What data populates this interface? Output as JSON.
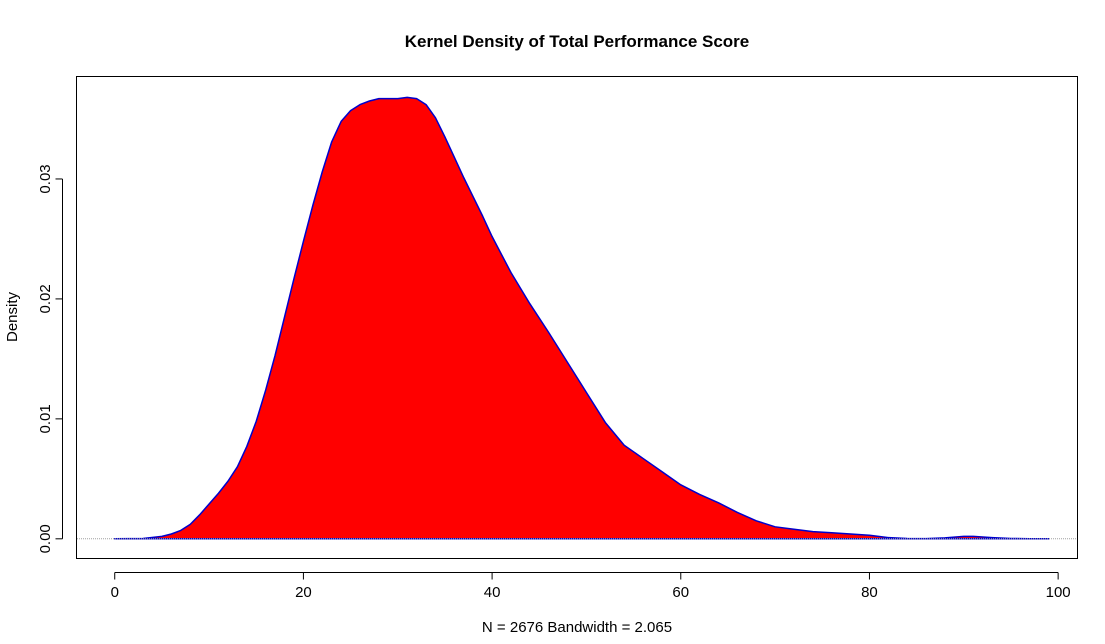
{
  "chart_data": {
    "type": "area",
    "title": "Kernel Density of Total Performance Score",
    "xlabel": "N = 2676   Bandwidth = 2.065",
    "ylabel": "Density",
    "xlim": [
      -4,
      102
    ],
    "ylim": [
      -0.0016,
      0.0385
    ],
    "x_ticks": [
      0,
      20,
      40,
      60,
      80,
      100
    ],
    "x_tick_labels": [
      "0",
      "20",
      "40",
      "60",
      "80",
      "100"
    ],
    "y_ticks": [
      0.0,
      0.01,
      0.02,
      0.03
    ],
    "y_tick_labels": [
      "0.00",
      "0.01",
      "0.02",
      "0.03"
    ],
    "fill_color": "#ff0000",
    "line_color": "#0000cc",
    "baseline_color": "#a0a0a0",
    "grid": false,
    "series": [
      {
        "x": [
          0,
          3,
          5,
          6,
          7,
          8,
          9,
          10,
          11,
          12,
          13,
          14,
          15,
          16,
          17,
          18,
          19,
          20,
          21,
          22,
          23,
          24,
          25,
          26,
          27,
          28,
          29,
          30,
          31,
          32,
          33,
          34,
          35,
          36,
          37,
          38,
          39,
          40,
          42,
          44,
          46,
          48,
          50,
          52,
          54,
          56,
          58,
          60,
          62,
          64,
          66,
          68,
          70,
          72,
          74,
          76,
          78,
          80,
          82,
          84,
          86,
          88,
          90,
          91,
          92,
          93,
          95,
          97,
          99
        ],
        "y": [
          0.0,
          3e-05,
          0.0002,
          0.0004,
          0.0007,
          0.0012,
          0.002,
          0.0029,
          0.0038,
          0.0048,
          0.006,
          0.0077,
          0.0098,
          0.0124,
          0.0153,
          0.0185,
          0.0217,
          0.0248,
          0.0278,
          0.0306,
          0.0331,
          0.0348,
          0.0357,
          0.0362,
          0.0365,
          0.0367,
          0.0367,
          0.0367,
          0.0368,
          0.0367,
          0.0362,
          0.0351,
          0.0335,
          0.0318,
          0.0301,
          0.0285,
          0.0269,
          0.0252,
          0.0222,
          0.0196,
          0.0172,
          0.0147,
          0.0122,
          0.0097,
          0.0078,
          0.0067,
          0.0056,
          0.0045,
          0.0037,
          0.003,
          0.0022,
          0.0015,
          0.001,
          0.0008,
          0.0006,
          0.0005,
          0.0004,
          0.0003,
          0.0001,
          3e-05,
          2e-05,
          8e-05,
          0.0002,
          0.0002,
          0.00015,
          0.0001,
          3e-05,
          1e-05,
          0.0
        ]
      }
    ]
  }
}
